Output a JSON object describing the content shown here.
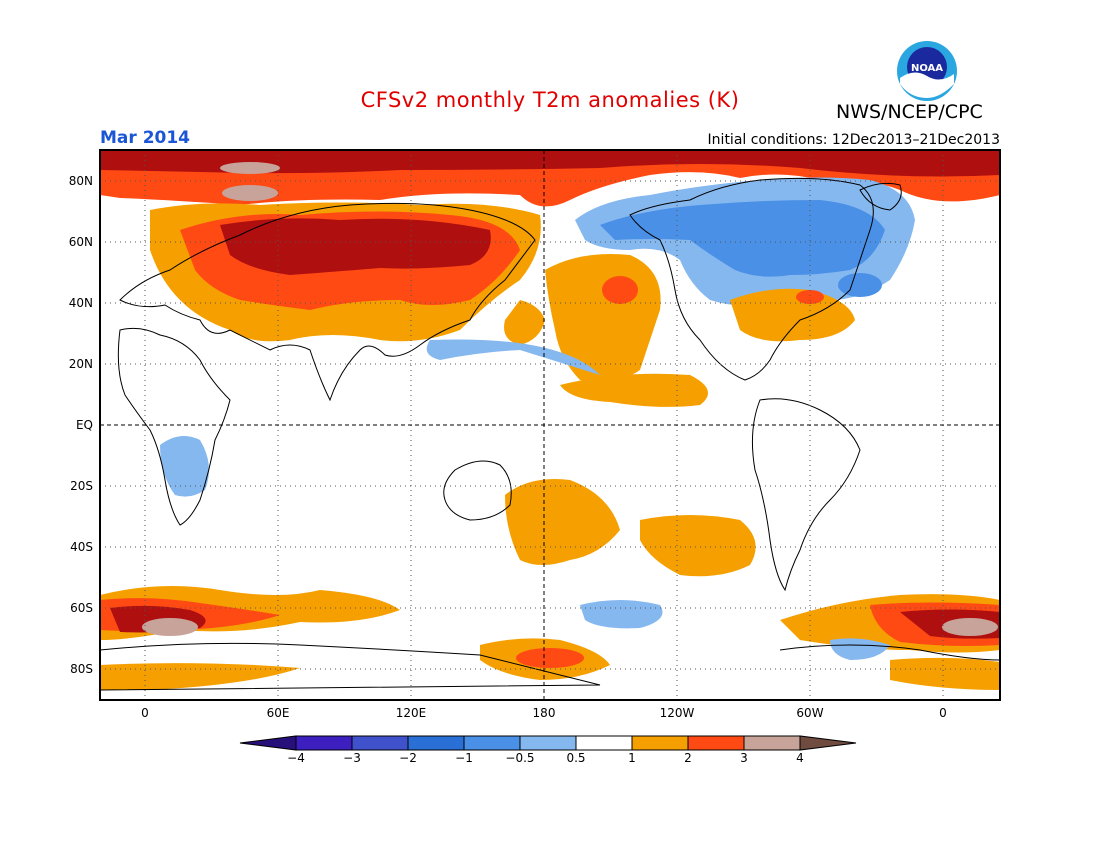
{
  "header": {
    "title": "CFSv2 monthly T2m anomalies (K)",
    "month": "Mar 2014",
    "initial_conditions": "Initial conditions: 12Dec2013–21Dec2013",
    "agency": "NWS/NCEP/CPC",
    "logo_text": "NOAA"
  },
  "map": {
    "lat_labels": [
      "80N",
      "60N",
      "40N",
      "20N",
      "EQ",
      "20S",
      "40S",
      "60S",
      "80S"
    ],
    "lon_labels": [
      "0",
      "60E",
      "120E",
      "180",
      "120W",
      "60W",
      "0"
    ],
    "lat_range": [
      -90,
      90
    ],
    "lon_range": [
      -20,
      380
    ]
  },
  "legend": {
    "tick_labels": [
      "−4",
      "−3",
      "−2",
      "−1",
      "−0.5",
      "0.5",
      "1",
      "2",
      "3",
      "4"
    ],
    "colors": [
      "#3d1fbf",
      "#3f52cc",
      "#2a6fd6",
      "#4a90e6",
      "#86b8f0",
      "#ffffff",
      "#f5a000",
      "#ff4a14",
      "#b00f0f",
      "#c8a39a"
    ],
    "end_colors": [
      "#28107a",
      "#704c40"
    ]
  }
}
